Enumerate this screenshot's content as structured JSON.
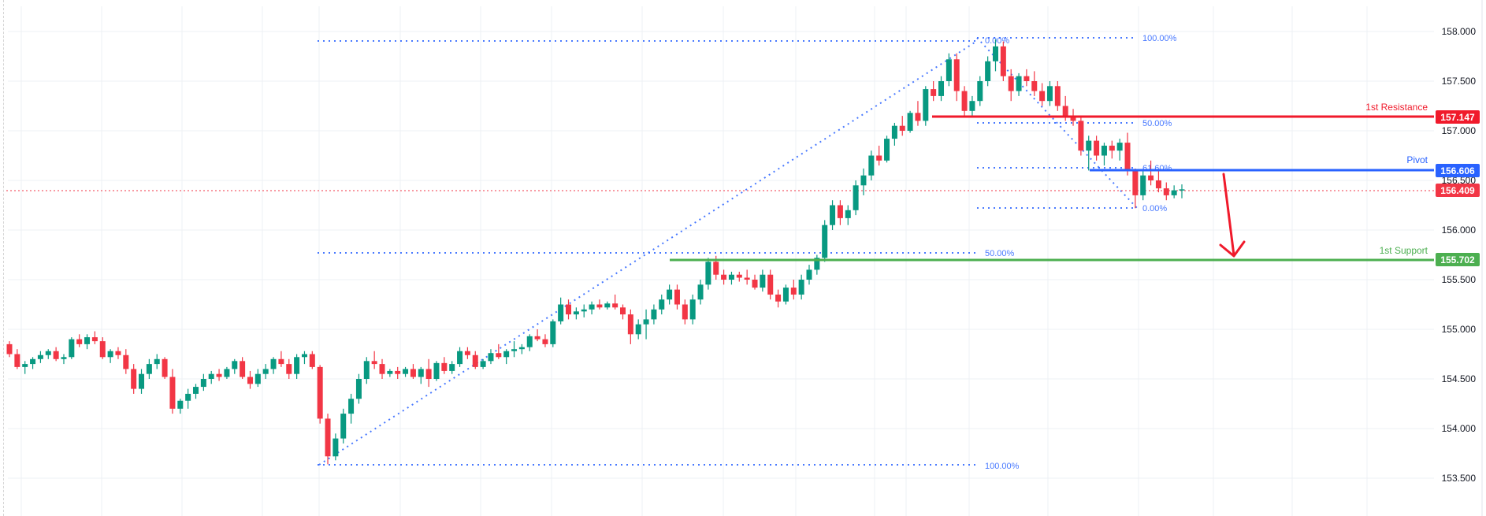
{
  "chart_data": {
    "type": "candlestick",
    "title": "",
    "xlabel": "",
    "ylabel": "",
    "ylim": [
      153.3,
      158.3
    ],
    "y_ticks": [
      "158.000",
      "157.500",
      "157.000",
      "156.500",
      "156.000",
      "155.500",
      "155.000",
      "154.500",
      "154.000",
      "153.500"
    ],
    "grid": true,
    "colors": {
      "up": "#089981",
      "down": "#f23645",
      "grid": "#f0f3fa",
      "fib": "#2962ff",
      "resistance": "#f01a2b",
      "pivot": "#2962ff",
      "support": "#4caf50",
      "current_price": "#f23645",
      "arrow": "#f01a2b"
    },
    "levels": [
      {
        "name": "1st Resistance",
        "value": "157.147",
        "color": "#f01a2b",
        "bg": "#f01a2b"
      },
      {
        "name": "Pivot",
        "value": "156.606",
        "color": "#2962ff",
        "bg": "#2962ff"
      },
      {
        "name": "1st Support",
        "value": "155.702",
        "color": "#4caf50",
        "bg": "#4caf50"
      }
    ],
    "current_price": {
      "value": "156.409",
      "bg": "#f23645"
    },
    "fib_retracements": [
      {
        "name": "major-upswing",
        "levels": [
          {
            "label": "100.00%",
            "price": 153.64
          },
          {
            "label": "50.00%",
            "price": 155.77
          },
          {
            "label": "0.00%",
            "price": 157.9
          }
        ]
      },
      {
        "name": "minor-downswing",
        "levels": [
          {
            "label": "100.00%",
            "price": 157.93
          },
          {
            "label": "50.00%",
            "price": 157.08
          },
          {
            "label": "61.60%",
            "price": 156.62
          },
          {
            "label": "0.00%",
            "price": 156.23
          }
        ]
      }
    ],
    "annotations": [
      {
        "type": "arrow",
        "direction": "down",
        "from_price": 156.55,
        "to_price": 155.73,
        "label": ""
      }
    ],
    "candles_approx": [
      [
        154.85,
        154.88,
        154.72,
        154.75
      ],
      [
        154.75,
        154.8,
        154.6,
        154.62
      ],
      [
        154.62,
        154.68,
        154.55,
        154.65
      ],
      [
        154.65,
        154.72,
        154.6,
        154.7
      ],
      [
        154.7,
        154.78,
        154.66,
        154.74
      ],
      [
        154.74,
        154.8,
        154.7,
        154.78
      ],
      [
        154.78,
        154.82,
        154.68,
        154.7
      ],
      [
        154.7,
        154.75,
        154.65,
        154.72
      ],
      [
        154.72,
        154.92,
        154.7,
        154.9
      ],
      [
        154.9,
        154.95,
        154.82,
        154.85
      ],
      [
        154.85,
        154.95,
        154.8,
        154.92
      ],
      [
        154.92,
        154.98,
        154.85,
        154.88
      ],
      [
        154.88,
        154.92,
        154.7,
        154.72
      ],
      [
        154.72,
        154.8,
        154.66,
        154.78
      ],
      [
        154.78,
        154.82,
        154.7,
        154.74
      ],
      [
        154.74,
        154.8,
        154.55,
        154.6
      ],
      [
        154.6,
        154.65,
        154.35,
        154.4
      ],
      [
        154.4,
        154.6,
        154.35,
        154.55
      ],
      [
        154.55,
        154.7,
        154.5,
        154.65
      ],
      [
        154.65,
        154.75,
        154.6,
        154.7
      ],
      [
        154.7,
        154.72,
        154.5,
        154.52
      ],
      [
        154.52,
        154.6,
        154.15,
        154.2
      ],
      [
        154.2,
        154.3,
        154.15,
        154.28
      ],
      [
        154.28,
        154.4,
        154.2,
        154.35
      ],
      [
        154.35,
        154.45,
        154.3,
        154.42
      ],
      [
        154.42,
        154.55,
        154.38,
        154.5
      ],
      [
        154.5,
        154.58,
        154.45,
        154.55
      ],
      [
        154.55,
        154.6,
        154.48,
        154.52
      ],
      [
        154.52,
        154.62,
        154.5,
        154.6
      ],
      [
        154.6,
        154.7,
        154.55,
        154.68
      ],
      [
        154.68,
        154.72,
        154.5,
        154.52
      ],
      [
        154.52,
        154.58,
        154.4,
        154.45
      ],
      [
        154.45,
        154.6,
        154.42,
        154.55
      ],
      [
        154.55,
        154.65,
        154.5,
        154.6
      ],
      [
        154.6,
        154.72,
        154.55,
        154.7
      ],
      [
        154.7,
        154.78,
        154.62,
        154.65
      ],
      [
        154.65,
        154.7,
        154.5,
        154.55
      ],
      [
        154.55,
        154.75,
        154.5,
        154.72
      ],
      [
        154.72,
        154.78,
        154.65,
        154.75
      ],
      [
        154.75,
        154.78,
        154.6,
        154.62
      ],
      [
        154.62,
        154.64,
        154.05,
        154.1
      ],
      [
        154.1,
        154.15,
        153.64,
        153.72
      ],
      [
        153.72,
        153.95,
        153.68,
        153.9
      ],
      [
        153.9,
        154.2,
        153.85,
        154.15
      ],
      [
        154.15,
        154.35,
        154.05,
        154.3
      ],
      [
        154.3,
        154.55,
        154.25,
        154.5
      ],
      [
        154.5,
        154.72,
        154.45,
        154.68
      ],
      [
        154.68,
        154.78,
        154.6,
        154.65
      ],
      [
        154.65,
        154.7,
        154.5,
        154.55
      ],
      [
        154.55,
        154.6,
        154.52,
        154.58
      ],
      [
        154.58,
        154.62,
        154.5,
        154.55
      ],
      [
        154.55,
        154.62,
        154.52,
        154.6
      ],
      [
        154.6,
        154.65,
        154.5,
        154.52
      ],
      [
        154.52,
        154.62,
        154.45,
        154.6
      ],
      [
        154.6,
        154.7,
        154.42,
        154.5
      ],
      [
        154.5,
        154.68,
        154.48,
        154.66
      ],
      [
        154.66,
        154.72,
        154.55,
        154.58
      ],
      [
        154.58,
        154.68,
        154.55,
        154.65
      ],
      [
        154.65,
        154.82,
        154.62,
        154.78
      ],
      [
        154.78,
        154.82,
        154.7,
        154.74
      ],
      [
        154.74,
        154.78,
        154.6,
        154.62
      ],
      [
        154.62,
        154.7,
        154.6,
        154.68
      ],
      [
        154.68,
        154.8,
        154.65,
        154.76
      ],
      [
        154.76,
        154.85,
        154.7,
        154.72
      ],
      [
        154.72,
        154.8,
        154.65,
        154.78
      ],
      [
        154.78,
        154.88,
        154.72,
        154.8
      ],
      [
        154.8,
        154.85,
        154.75,
        154.82
      ],
      [
        154.82,
        154.95,
        154.78,
        154.93
      ],
      [
        154.93,
        155.0,
        154.88,
        154.9
      ],
      [
        154.9,
        154.95,
        154.82,
        154.85
      ],
      [
        154.85,
        155.1,
        154.82,
        155.08
      ],
      [
        155.08,
        155.32,
        155.05,
        155.25
      ],
      [
        155.25,
        155.3,
        155.1,
        155.15
      ],
      [
        155.15,
        155.22,
        155.1,
        155.18
      ],
      [
        155.18,
        155.25,
        155.12,
        155.2
      ],
      [
        155.2,
        155.28,
        155.15,
        155.25
      ],
      [
        155.25,
        155.3,
        155.2,
        155.22
      ],
      [
        155.22,
        155.28,
        155.2,
        155.26
      ],
      [
        155.26,
        155.35,
        155.2,
        155.22
      ],
      [
        155.22,
        155.25,
        155.1,
        155.15
      ],
      [
        155.15,
        155.2,
        154.85,
        154.95
      ],
      [
        154.95,
        155.1,
        154.9,
        155.05
      ],
      [
        155.05,
        155.2,
        154.9,
        155.1
      ],
      [
        155.1,
        155.25,
        155.05,
        155.2
      ],
      [
        155.2,
        155.35,
        155.15,
        155.3
      ],
      [
        155.3,
        155.45,
        155.25,
        155.4
      ],
      [
        155.4,
        155.45,
        155.2,
        155.25
      ],
      [
        155.25,
        155.3,
        155.05,
        155.1
      ],
      [
        155.1,
        155.35,
        155.05,
        155.3
      ],
      [
        155.3,
        155.5,
        155.25,
        155.45
      ],
      [
        155.45,
        155.72,
        155.4,
        155.68
      ],
      [
        155.68,
        155.74,
        155.5,
        155.55
      ],
      [
        155.55,
        155.6,
        155.45,
        155.5
      ],
      [
        155.5,
        155.58,
        155.45,
        155.55
      ],
      [
        155.55,
        155.58,
        155.48,
        155.52
      ],
      [
        155.52,
        155.6,
        155.45,
        155.5
      ],
      [
        155.5,
        155.55,
        155.4,
        155.42
      ],
      [
        155.42,
        155.6,
        155.38,
        155.55
      ],
      [
        155.55,
        155.6,
        155.3,
        155.35
      ],
      [
        155.35,
        155.4,
        155.22,
        155.28
      ],
      [
        155.28,
        155.45,
        155.25,
        155.42
      ],
      [
        155.42,
        155.5,
        155.3,
        155.35
      ],
      [
        155.35,
        155.55,
        155.3,
        155.5
      ],
      [
        155.5,
        155.65,
        155.45,
        155.6
      ],
      [
        155.6,
        155.75,
        155.55,
        155.72
      ],
      [
        155.72,
        156.1,
        155.68,
        156.05
      ],
      [
        156.05,
        156.3,
        156.0,
        156.25
      ],
      [
        156.25,
        156.3,
        156.05,
        156.12
      ],
      [
        156.12,
        156.25,
        156.05,
        156.2
      ],
      [
        156.2,
        156.5,
        156.15,
        156.45
      ],
      [
        156.45,
        156.62,
        156.35,
        156.55
      ],
      [
        156.55,
        156.8,
        156.5,
        156.75
      ],
      [
        156.75,
        156.85,
        156.65,
        156.7
      ],
      [
        156.7,
        156.95,
        156.68,
        156.92
      ],
      [
        156.92,
        157.08,
        156.85,
        157.05
      ],
      [
        157.05,
        157.15,
        156.95,
        157.0
      ],
      [
        157.0,
        157.2,
        156.98,
        157.18
      ],
      [
        157.18,
        157.3,
        157.05,
        157.1
      ],
      [
        157.1,
        157.45,
        157.05,
        157.42
      ],
      [
        157.42,
        157.5,
        157.3,
        157.35
      ],
      [
        157.35,
        157.55,
        157.3,
        157.5
      ],
      [
        157.5,
        157.78,
        157.45,
        157.72
      ],
      [
        157.72,
        157.78,
        157.3,
        157.4
      ],
      [
        157.4,
        157.45,
        157.15,
        157.2
      ],
      [
        157.2,
        157.35,
        157.15,
        157.3
      ],
      [
        157.3,
        157.55,
        157.25,
        157.5
      ],
      [
        157.5,
        157.75,
        157.45,
        157.7
      ],
      [
        157.7,
        157.92,
        157.6,
        157.85
      ],
      [
        157.85,
        157.9,
        157.5,
        157.55
      ],
      [
        157.55,
        157.62,
        157.3,
        157.4
      ],
      [
        157.4,
        157.58,
        157.35,
        157.55
      ],
      [
        157.55,
        157.62,
        157.45,
        157.5
      ],
      [
        157.5,
        157.6,
        157.35,
        157.4
      ],
      [
        157.4,
        157.48,
        157.25,
        157.3
      ],
      [
        157.3,
        157.5,
        157.25,
        157.45
      ],
      [
        157.45,
        157.5,
        157.2,
        157.25
      ],
      [
        157.25,
        157.35,
        157.1,
        157.15
      ],
      [
        157.15,
        157.22,
        157.05,
        157.1
      ],
      [
        157.1,
        157.15,
        156.75,
        156.8
      ],
      [
        156.8,
        156.95,
        156.6,
        156.9
      ],
      [
        156.9,
        156.95,
        156.7,
        156.75
      ],
      [
        156.75,
        156.88,
        156.65,
        156.85
      ],
      [
        156.85,
        156.9,
        156.72,
        156.8
      ],
      [
        156.8,
        156.92,
        156.7,
        156.88
      ],
      [
        156.88,
        156.98,
        156.55,
        156.6
      ],
      [
        156.6,
        156.62,
        156.22,
        156.35
      ],
      [
        156.35,
        156.6,
        156.3,
        156.55
      ],
      [
        156.55,
        156.7,
        156.45,
        156.5
      ],
      [
        156.5,
        156.6,
        156.38,
        156.42
      ],
      [
        156.42,
        156.48,
        156.3,
        156.35
      ],
      [
        156.35,
        156.45,
        156.32,
        156.4
      ],
      [
        156.4,
        156.46,
        156.32,
        156.41
      ]
    ]
  },
  "price_axis": {
    "ticks": [
      "158.000",
      "157.500",
      "157.000",
      "156.500",
      "156.000",
      "155.500",
      "155.000",
      "154.500",
      "154.000",
      "153.500"
    ]
  },
  "labels": {
    "resistance_name": "1st Resistance",
    "resistance_value": "157.147",
    "pivot_name": "Pivot",
    "pivot_value": "156.606",
    "support_name": "1st Support",
    "support_value": "155.702",
    "current_value": "156.409",
    "fib_major_100": "100.00%",
    "fib_major_50": "50.00%",
    "fib_major_0": "0.00%",
    "fib_minor_100": "100.00%",
    "fib_minor_50": "50.00%",
    "fib_minor_616": "61.60%",
    "fib_minor_0": "0.00%"
  }
}
